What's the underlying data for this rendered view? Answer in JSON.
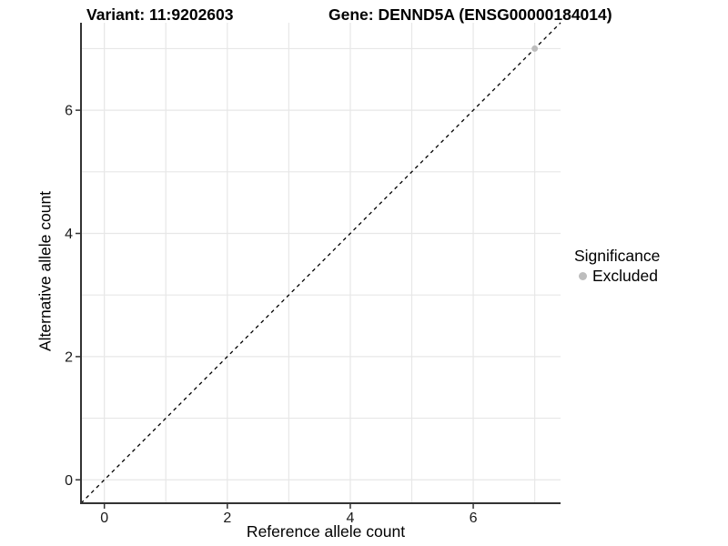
{
  "header": {
    "variant_title": "Variant: 11:9202603",
    "gene_title": "Gene: DENND5A (ENSG00000184014)"
  },
  "axes": {
    "x_label": "Reference allele count",
    "y_label": "Alternative allele count"
  },
  "legend": {
    "title": "Significance",
    "position": "right",
    "items": [
      {
        "label": "Excluded",
        "color": "#bdbdbd",
        "marker": "circle"
      }
    ]
  },
  "colors": {
    "background": "#ffffff",
    "grid": "#e7e7e7",
    "axis_line": "#333333",
    "tick_text": "#1a1a1a",
    "title_text": "#000000",
    "identity_line": "#000000",
    "excluded_point": "#bdbdbd"
  },
  "chart_data": {
    "type": "scatter",
    "title": "Variant: 11:9202603   Gene: DENND5A (ENSG00000184014)",
    "xlabel": "Reference allele count",
    "ylabel": "Alternative allele count",
    "xlim": [
      -0.38,
      7.42
    ],
    "ylim": [
      -0.38,
      7.42
    ],
    "x_ticks": [
      0,
      2,
      4,
      6
    ],
    "y_ticks": [
      0,
      2,
      4,
      6
    ],
    "grid_values_x": [
      0,
      1,
      2,
      3,
      4,
      5,
      6,
      7
    ],
    "grid_values_y": [
      0,
      1,
      2,
      3,
      4,
      5,
      6,
      7
    ],
    "grid": true,
    "legend_position": "right",
    "identity_line": {
      "style": "dashed",
      "from": [
        -0.38,
        -0.38
      ],
      "to": [
        7.42,
        7.42
      ]
    },
    "series": [
      {
        "name": "Excluded",
        "color": "#bdbdbd",
        "points": [
          {
            "x": 7,
            "y": 7
          }
        ]
      }
    ]
  }
}
